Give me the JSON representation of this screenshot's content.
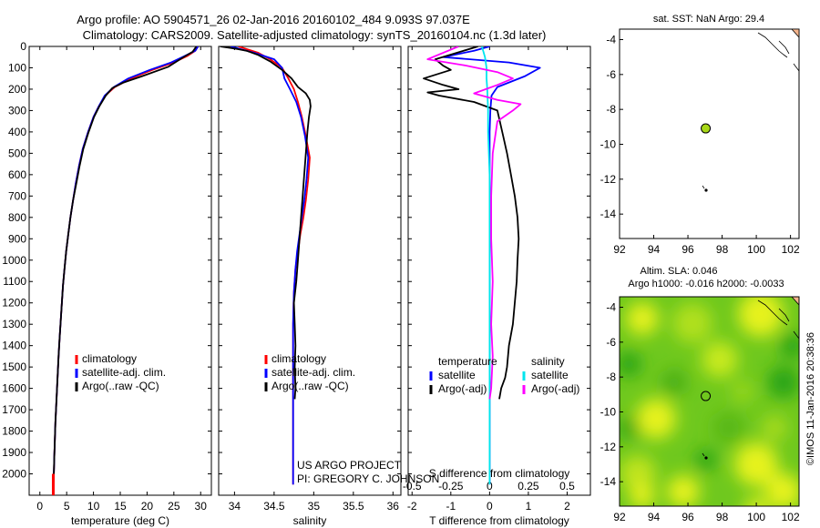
{
  "header": {
    "line1": "Argo profile: AO 5904571_26 02-Jan-2016 20160102_484 9.093S 97.037E",
    "line2": "Climatology: CARS2009. Satellite-adjusted climatology: synTS_20160104.nc (1.3d later)"
  },
  "colors": {
    "climatology": "#ff0000",
    "satellite": "#0000ff",
    "argo": "#000000",
    "sal_satellite": "#00e5ee",
    "sal_argo": "#ff00ff",
    "land": "#f4b48c",
    "sla_high": "#e6f21a",
    "sla_low": "#2aa414",
    "sst_marker": "#a8d818"
  },
  "chart_data": [
    {
      "type": "line",
      "name": "temperature-profile",
      "xlabel": "temperature (deg C)",
      "ylabel": "pressure",
      "xlim": [
        -2,
        32
      ],
      "ylim": [
        2100,
        0
      ],
      "xticks": [
        0,
        5,
        10,
        15,
        20,
        25,
        30
      ],
      "yticks": [
        0,
        100,
        200,
        300,
        400,
        500,
        600,
        700,
        800,
        900,
        1000,
        1100,
        1200,
        1300,
        1400,
        1500,
        1600,
        1700,
        1800,
        1900,
        2000
      ],
      "legend": [
        "climatology",
        "satellite-adj. clim.",
        "Argo(..raw -QC)"
      ],
      "legend_position": "center-right",
      "series": [
        {
          "name": "climatology",
          "color_key": "climatology",
          "x": [
            29.5,
            29,
            27.5,
            25,
            21,
            17,
            14,
            12.2,
            11,
            10,
            9,
            8,
            7.3,
            6.7,
            6.2,
            5.7,
            5.3,
            4.9,
            4.6,
            4.3,
            4.1,
            3.9,
            3.7,
            3.5,
            3.35,
            3.2,
            3.05,
            2.9,
            2.8,
            2.7,
            2.6,
            2.5
          ],
          "y": [
            0,
            20,
            45,
            75,
            110,
            150,
            190,
            230,
            280,
            330,
            400,
            480,
            560,
            640,
            720,
            800,
            880,
            960,
            1040,
            1120,
            1200,
            1280,
            1360,
            1440,
            1520,
            1600,
            1680,
            1760,
            1840,
            1920,
            2000,
            2050
          ]
        },
        {
          "name": "satellite",
          "color_key": "satellite",
          "x": [
            29.5,
            29,
            27,
            24.5,
            20.5,
            16.5,
            13.8,
            12.1,
            11,
            10,
            9,
            8,
            7.3,
            6.7,
            6.2,
            5.7,
            5.3,
            4.9,
            4.6,
            4.3,
            4.1,
            3.9,
            3.7,
            3.5,
            3.35,
            3.2,
            3.05,
            2.9,
            2.8,
            2.7,
            2.6,
            2.5
          ],
          "y": [
            0,
            20,
            45,
            75,
            110,
            150,
            190,
            230,
            280,
            330,
            400,
            480,
            560,
            640,
            720,
            800,
            880,
            960,
            1040,
            1120,
            1200,
            1280,
            1360,
            1440,
            1520,
            1600,
            1680,
            1760,
            1840,
            1920,
            2000,
            2050
          ]
        },
        {
          "name": "argo",
          "color_key": "argo",
          "x": [
            29.2,
            28.5,
            26.5,
            24,
            19,
            15.5,
            13.5,
            12.3,
            11.1,
            10.1,
            9.1,
            8.1,
            7.4,
            6.8,
            6.2,
            5.7,
            5.3,
            4.9,
            4.6,
            4.3,
            4.1,
            3.9,
            3.7,
            3.5,
            3.35,
            3.2,
            3.05,
            2.9,
            2.8,
            2.7,
            2.6,
            2.5
          ],
          "y": [
            0,
            25,
            55,
            95,
            140,
            170,
            195,
            230,
            280,
            330,
            400,
            480,
            560,
            640,
            720,
            800,
            880,
            960,
            1040,
            1120,
            1200,
            1280,
            1360,
            1440,
            1520,
            1600,
            1680,
            1760,
            1840,
            1920,
            2000,
            2050
          ]
        }
      ]
    },
    {
      "type": "line",
      "name": "salinity-profile",
      "xlabel": "salinity",
      "xlim": [
        33.8,
        36.1
      ],
      "ylim": [
        2100,
        0
      ],
      "xticks": [
        34,
        34.5,
        35,
        35.5,
        36
      ],
      "legend": [
        "climatology",
        "satellite-adj. clim.",
        "Argo(..raw -QC)"
      ],
      "legend_position": "center-right",
      "credit": [
        "US ARGO PROJECT",
        "PI: GREGORY C. JOHNSON"
      ],
      "series": [
        {
          "name": "climatology",
          "color_key": "climatology",
          "x": [
            34.05,
            34.3,
            34.45,
            34.6,
            34.68,
            34.75,
            34.8,
            34.85,
            34.9,
            34.95,
            34.93,
            34.9,
            34.87,
            34.83,
            34.8,
            34.77,
            34.75,
            34.74,
            34.74,
            34.74,
            34.74,
            34.74,
            34.74,
            34.74
          ],
          "y": [
            0,
            30,
            60,
            100,
            150,
            200,
            260,
            330,
            420,
            520,
            620,
            720,
            800,
            880,
            960,
            1040,
            1150,
            1300,
            1450,
            1600,
            1750,
            1900,
            2000,
            2050
          ]
        },
        {
          "name": "satellite",
          "color_key": "satellite",
          "x": [
            33.95,
            34.25,
            34.5,
            34.6,
            34.63,
            34.7,
            34.78,
            34.84,
            34.89,
            34.93,
            34.91,
            34.88,
            34.85,
            34.82,
            34.79,
            34.77,
            34.75,
            34.74,
            34.74,
            34.74,
            34.74,
            34.74,
            34.74,
            34.74
          ],
          "y": [
            0,
            30,
            60,
            100,
            150,
            200,
            260,
            330,
            420,
            520,
            620,
            720,
            800,
            880,
            960,
            1040,
            1150,
            1300,
            1450,
            1600,
            1750,
            1900,
            2000,
            2050
          ]
        },
        {
          "name": "argo",
          "color_key": "argo",
          "x": [
            33.82,
            34.0,
            34.15,
            34.3,
            34.45,
            34.6,
            34.72,
            34.8,
            34.9,
            34.95,
            34.96,
            34.94,
            34.92,
            34.9,
            34.88,
            34.86,
            34.84,
            34.82,
            34.8,
            34.78,
            34.75,
            34.76,
            34.77,
            34.76,
            34.77,
            34.76
          ],
          "y": [
            0,
            10,
            20,
            40,
            70,
            110,
            150,
            190,
            220,
            250,
            280,
            330,
            400,
            500,
            600,
            700,
            800,
            900,
            1000,
            1100,
            1200,
            1300,
            1400,
            1500,
            1600,
            1650
          ]
        }
      ]
    },
    {
      "type": "line",
      "name": "difference-profile",
      "xlabel": "T difference from climatology",
      "xlabel_top": "S difference from climatology",
      "xlim": [
        -2.1,
        2.6
      ],
      "ylim": [
        2100,
        0
      ],
      "xticks": [
        -2,
        -1,
        0,
        1,
        2
      ],
      "xticks_top": [
        "-0.5",
        "-0.25",
        "0",
        "0.25",
        "0.5"
      ],
      "legend_headers": [
        "temperature",
        "salinity"
      ],
      "legend": [
        "satellite",
        "Argo(-adj)",
        "satellite",
        "Argo(-adj)"
      ],
      "series": [
        {
          "name": "T satellite",
          "color_key": "satellite",
          "x": [
            0,
            -0.4,
            -1.2,
            0.5,
            1.3,
            0.9,
            0.2,
            0.05,
            0.02,
            0,
            0,
            0,
            0,
            0,
            0,
            0,
            0,
            0,
            0,
            0
          ],
          "y": [
            0,
            20,
            50,
            75,
            100,
            140,
            190,
            230,
            300,
            400,
            600,
            800,
            1000,
            1200,
            1400,
            1600,
            1800,
            1900,
            2000,
            2050
          ]
        },
        {
          "name": "T argo",
          "color_key": "argo",
          "x": [
            -0.3,
            -1.4,
            -1.2,
            -1.0,
            -1.7,
            -1.2,
            -0.8,
            -1.6,
            -1.3,
            -0.4,
            0.2,
            0.35,
            0.45,
            0.55,
            0.65,
            0.72,
            0.75,
            0.72,
            0.7,
            0.65,
            0.6,
            0.5,
            0.45,
            0.4,
            0.3,
            0.25
          ],
          "y": [
            0,
            60,
            90,
            110,
            150,
            180,
            200,
            215,
            230,
            260,
            300,
            420,
            500,
            600,
            700,
            800,
            900,
            1000,
            1100,
            1200,
            1300,
            1400,
            1500,
            1550,
            1600,
            1650
          ]
        },
        {
          "name": "S satellite",
          "color_key": "sal_satellite",
          "x": [
            -0.05,
            -0.03,
            -0.02,
            -0.02,
            -0.015,
            -0.01,
            -0.01,
            0,
            0,
            0,
            0,
            0,
            0,
            0,
            0,
            0
          ],
          "y": [
            0,
            50,
            100,
            150,
            200,
            300,
            400,
            600,
            800,
            1000,
            1200,
            1400,
            1600,
            1800,
            2000,
            2050
          ]
        },
        {
          "name": "S argo",
          "color_key": "sal_argo",
          "x": [
            -0.2,
            -0.4,
            -0.15,
            0.05,
            0.15,
            0.05,
            -0.1,
            0.05,
            0.2,
            0.15,
            0.05,
            0.02,
            0.01,
            0.01,
            0.02,
            0.01,
            0.02,
            0.01,
            0.0
          ],
          "y": [
            0,
            60,
            90,
            120,
            150,
            180,
            220,
            250,
            270,
            300,
            350,
            500,
            700,
            900,
            1100,
            1300,
            1450,
            1600,
            1650
          ]
        }
      ]
    },
    {
      "type": "scatter",
      "name": "sst-map",
      "title": "sat. SST: NaN Argo: 29.4",
      "xlim": [
        92,
        102.5
      ],
      "ylim": [
        -15.4,
        -3.4
      ],
      "xticks": [
        92,
        94,
        96,
        98,
        100,
        102
      ],
      "yticks": [
        -4,
        -6,
        -8,
        -10,
        -12,
        -14
      ],
      "points": [
        {
          "lon": 97.04,
          "lat": -9.09,
          "label": "Argo float"
        }
      ]
    },
    {
      "type": "heatmap",
      "name": "sla-map",
      "title": "Altim. SLA: 0.046",
      "subtitle": "Argo h1000: -0.016 h2000: -0.0033",
      "xlim": [
        92,
        102.5
      ],
      "ylim": [
        -15.4,
        -3.4
      ],
      "xticks": [
        92,
        94,
        96,
        98,
        100,
        102
      ],
      "yticks": [
        -4,
        -6,
        -8,
        -10,
        -12,
        -14
      ],
      "points": [
        {
          "lon": 97.04,
          "lat": -9.09,
          "label": "Argo float"
        }
      ],
      "footnote": "©IMOS 11-Jan-2016 20:38:36"
    }
  ]
}
